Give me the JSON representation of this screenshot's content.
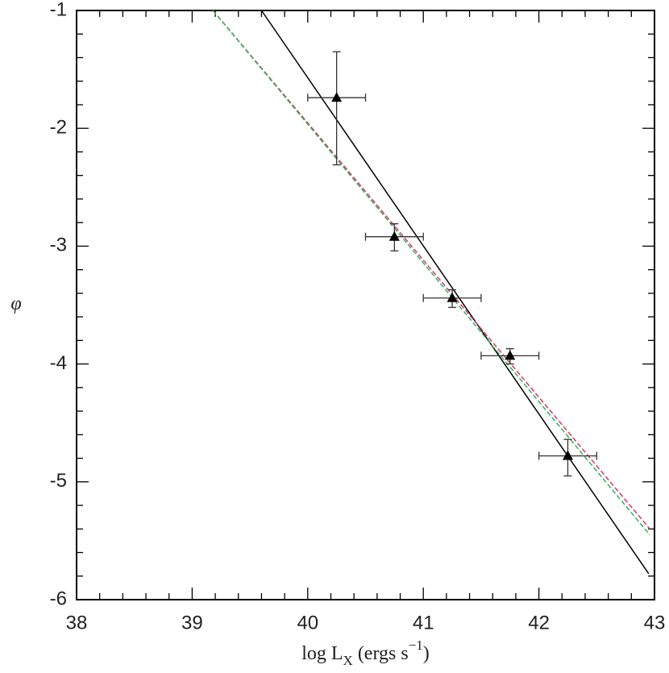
{
  "chart_data": {
    "type": "scatter",
    "xlabel": [
      "log L",
      "X",
      " (ergs s",
      "−1",
      ")"
    ],
    "ylabel": "φ",
    "xlim": [
      38,
      43
    ],
    "xticks": [
      38,
      39,
      40,
      41,
      42,
      43
    ],
    "xminorticks": [
      38.2,
      38.4,
      38.6,
      38.8,
      39.2,
      39.4,
      39.6,
      39.8,
      40.2,
      40.4,
      40.6,
      40.8,
      41.2,
      41.4,
      41.6,
      41.8,
      42.2,
      42.4,
      42.6,
      42.8
    ],
    "ylim": [
      -6,
      -1
    ],
    "yticks": [
      -6,
      -5,
      -4,
      -3,
      -2,
      -1
    ],
    "yminorticks": [
      -5.8,
      -5.6,
      -5.4,
      -5.2,
      -4.8,
      -4.6,
      -4.4,
      -4.2,
      -3.8,
      -3.6,
      -3.4,
      -3.2,
      -2.8,
      -2.6,
      -2.4,
      -2.2,
      -1.8,
      -1.6,
      -1.4,
      -1.2
    ],
    "points": {
      "color": "#000000",
      "x": [
        40.25,
        40.75,
        41.25,
        41.75,
        42.25
      ],
      "y": [
        -1.74,
        -2.92,
        -3.44,
        -3.93,
        -4.78
      ],
      "xlow": [
        40.0,
        40.5,
        41.0,
        41.5,
        42.0
      ],
      "xhigh": [
        40.5,
        41.0,
        41.5,
        42.0,
        42.5
      ],
      "ylow": [
        -2.31,
        -3.04,
        -3.52,
        -4.0,
        -4.95
      ],
      "yhigh": [
        -1.35,
        -2.81,
        -3.37,
        -3.87,
        -4.64
      ]
    },
    "lines": [
      {
        "color": "#000000",
        "dash": false,
        "x": [
          39.6,
          42.95
        ],
        "y": [
          -1,
          -5.78
        ]
      },
      {
        "color": "#e0306a",
        "dash": true,
        "x": [
          39.18,
          42.96
        ],
        "y": [
          -1,
          -5.4
        ]
      },
      {
        "color": "#2fb35a",
        "dash": true,
        "x": [
          39.18,
          42.96
        ],
        "y": [
          -1,
          -5.45
        ]
      }
    ]
  }
}
